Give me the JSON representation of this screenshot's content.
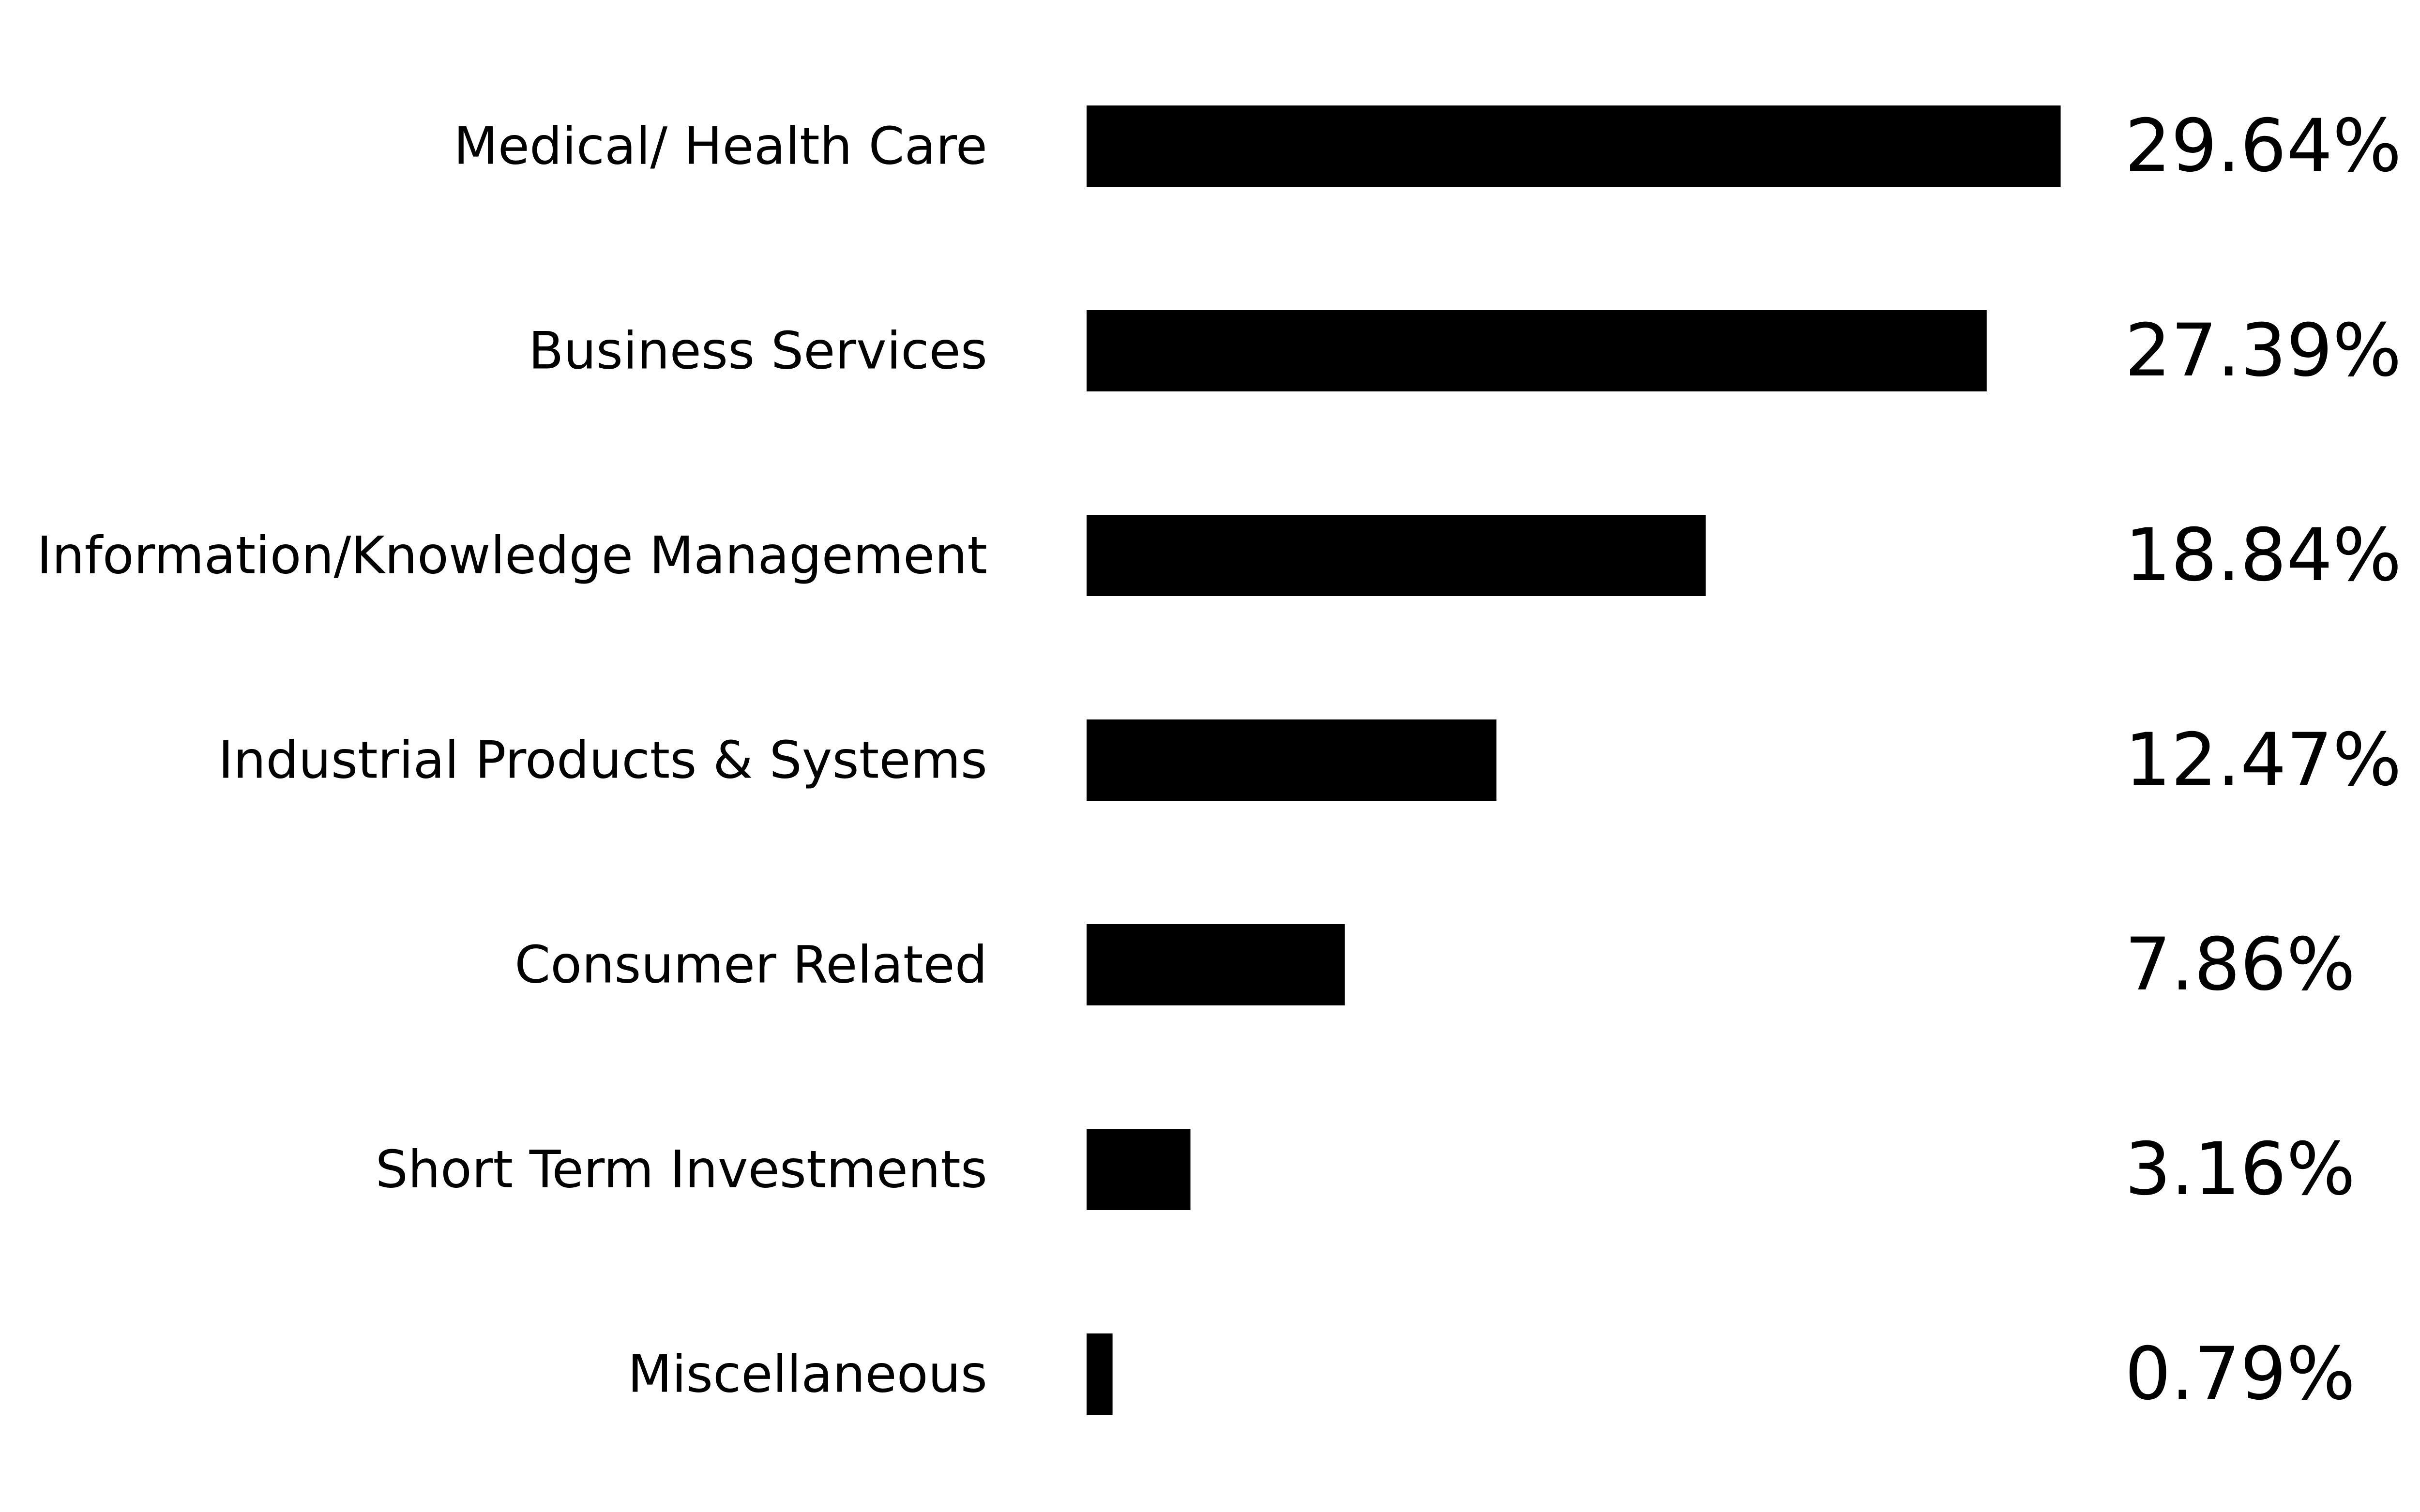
{
  "chart_data": {
    "type": "bar",
    "orientation": "horizontal",
    "title": "",
    "xlabel": "",
    "ylabel": "",
    "grid": false,
    "categories": [
      "Medical/ Health Care",
      "Business Services",
      "Information/Knowledge Management",
      "Industrial Products & Systems",
      "Consumer Related",
      "Short Term Investments",
      "Miscellaneous"
    ],
    "values": [
      29.64,
      27.39,
      18.84,
      12.47,
      7.86,
      3.16,
      0.79
    ],
    "value_labels": [
      "29.64%",
      "27.39%",
      "18.84%",
      "12.47%",
      "7.86%",
      "3.16%",
      "0.79%"
    ],
    "bar_color": "#000000"
  }
}
